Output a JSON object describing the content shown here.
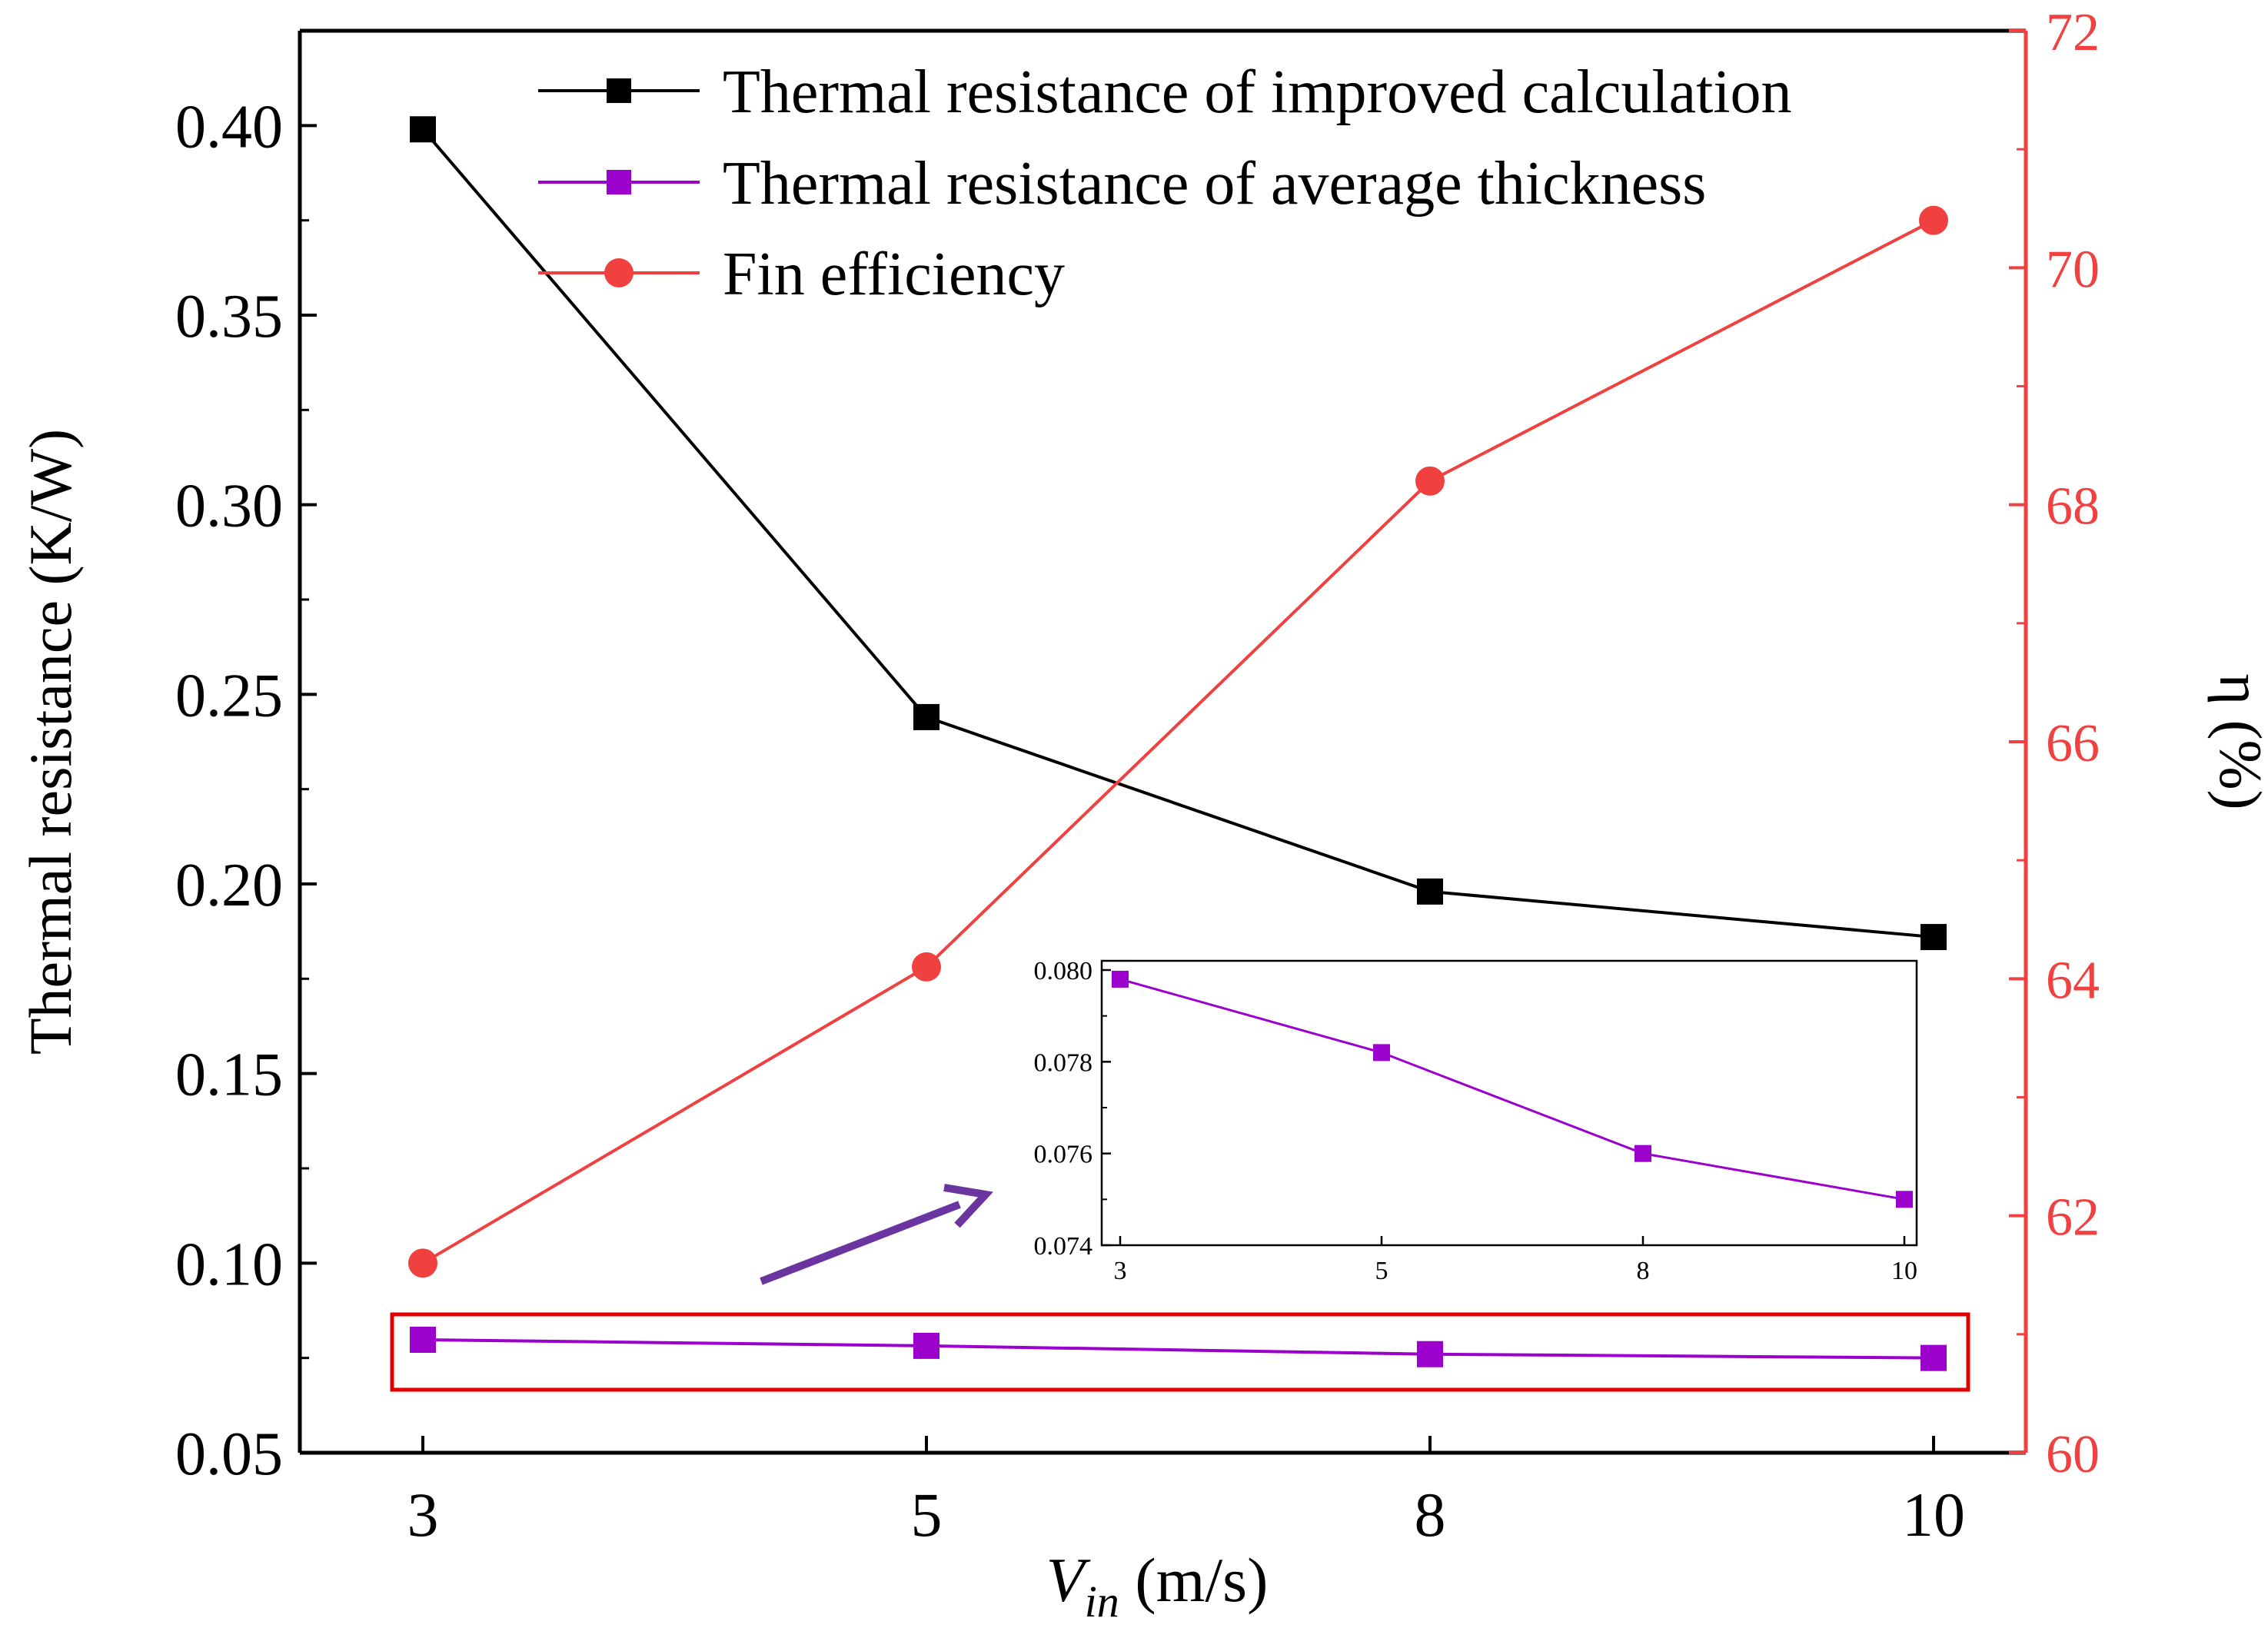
{
  "colors": {
    "improved": "#000000",
    "average": "#9b00cc",
    "efficiency": "#f04040",
    "right_axis": "#f04040",
    "arrow": "#6a35a0",
    "highlight_box": "#e00000"
  },
  "chart_data": [
    {
      "type": "line",
      "role": "main",
      "title": "",
      "xlabel": {
        "symbol": "V",
        "subscript": "in",
        "unit": " (m/s)"
      },
      "ylabel": "Thermal resistance (K/W)",
      "y2label": "η (%)",
      "categories": [
        "3",
        "5",
        "8",
        "10"
      ],
      "x": [
        3,
        5,
        8,
        10
      ],
      "ylim": [
        0.05,
        0.425
      ],
      "y2lim": [
        60,
        72
      ],
      "yticks": [
        "0.05",
        "0.10",
        "0.15",
        "0.20",
        "0.25",
        "0.30",
        "0.35",
        "0.40"
      ],
      "y2ticks": [
        "60",
        "62",
        "64",
        "66",
        "68",
        "70",
        "72"
      ],
      "legend_position": "top-right",
      "series": [
        {
          "name": "Thermal resistance of improved calculation",
          "axis": "left",
          "marker": "square",
          "color": "#000000",
          "values": [
            0.399,
            0.244,
            0.198,
            0.186
          ]
        },
        {
          "name": "Thermal resistance of average thickness",
          "axis": "left",
          "marker": "square",
          "color": "#9b00cc",
          "values": [
            0.0798,
            0.0782,
            0.076,
            0.075
          ]
        },
        {
          "name": "Fin efficiency",
          "axis": "right",
          "marker": "circle",
          "color": "#f04040",
          "values": [
            61.6,
            64.1,
            68.2,
            70.4
          ]
        }
      ]
    },
    {
      "type": "line",
      "role": "inset",
      "title": "",
      "xlabel": "",
      "ylabel": "",
      "categories": [
        "3",
        "5",
        "8",
        "10"
      ],
      "x": [
        3,
        5,
        8,
        10
      ],
      "ylim": [
        0.074,
        0.08
      ],
      "yticks": [
        "0.074",
        "0.076",
        "0.078",
        "0.080"
      ],
      "series": [
        {
          "name": "Thermal resistance of average thickness",
          "marker": "square",
          "color": "#9b00cc",
          "values": [
            0.0798,
            0.0782,
            0.076,
            0.075
          ]
        }
      ]
    }
  ]
}
